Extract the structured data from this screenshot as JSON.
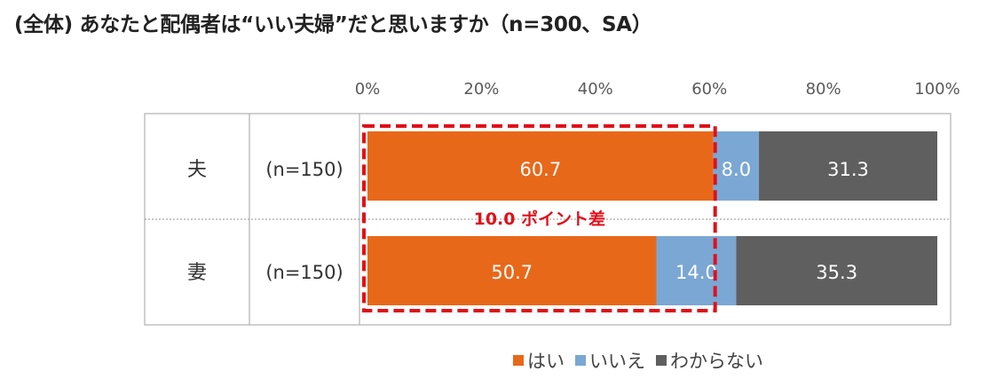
{
  "title": "(全体) あなたと配偶者は“いい夫婦”だと思いますか（n=300、SA）",
  "chart_data": {
    "type": "bar",
    "orientation": "horizontal-stacked-100",
    "categories": [
      "夫",
      "妻"
    ],
    "category_n": [
      "(n=150)",
      "(n=150)"
    ],
    "series": [
      {
        "name": "はい",
        "values": [
          60.7,
          50.7
        ],
        "labels": [
          "60.7",
          "50.7"
        ],
        "color": "#e8681a"
      },
      {
        "name": "いいえ",
        "values": [
          8.0,
          14.0
        ],
        "labels": [
          "8.0",
          "14.0"
        ],
        "color": "#7ba7d4"
      },
      {
        "name": "わからない",
        "values": [
          31.3,
          35.3
        ],
        "labels": [
          "31.3",
          "35.3"
        ],
        "color": "#5f5f5f"
      }
    ],
    "xticks": [
      "0%",
      "20%",
      "40%",
      "60%",
      "80%",
      "100%"
    ],
    "xlim": [
      0,
      100
    ],
    "annotation": {
      "text": "10.0 ポイント差",
      "color": "#e0101a"
    },
    "legend_position": "bottom"
  }
}
